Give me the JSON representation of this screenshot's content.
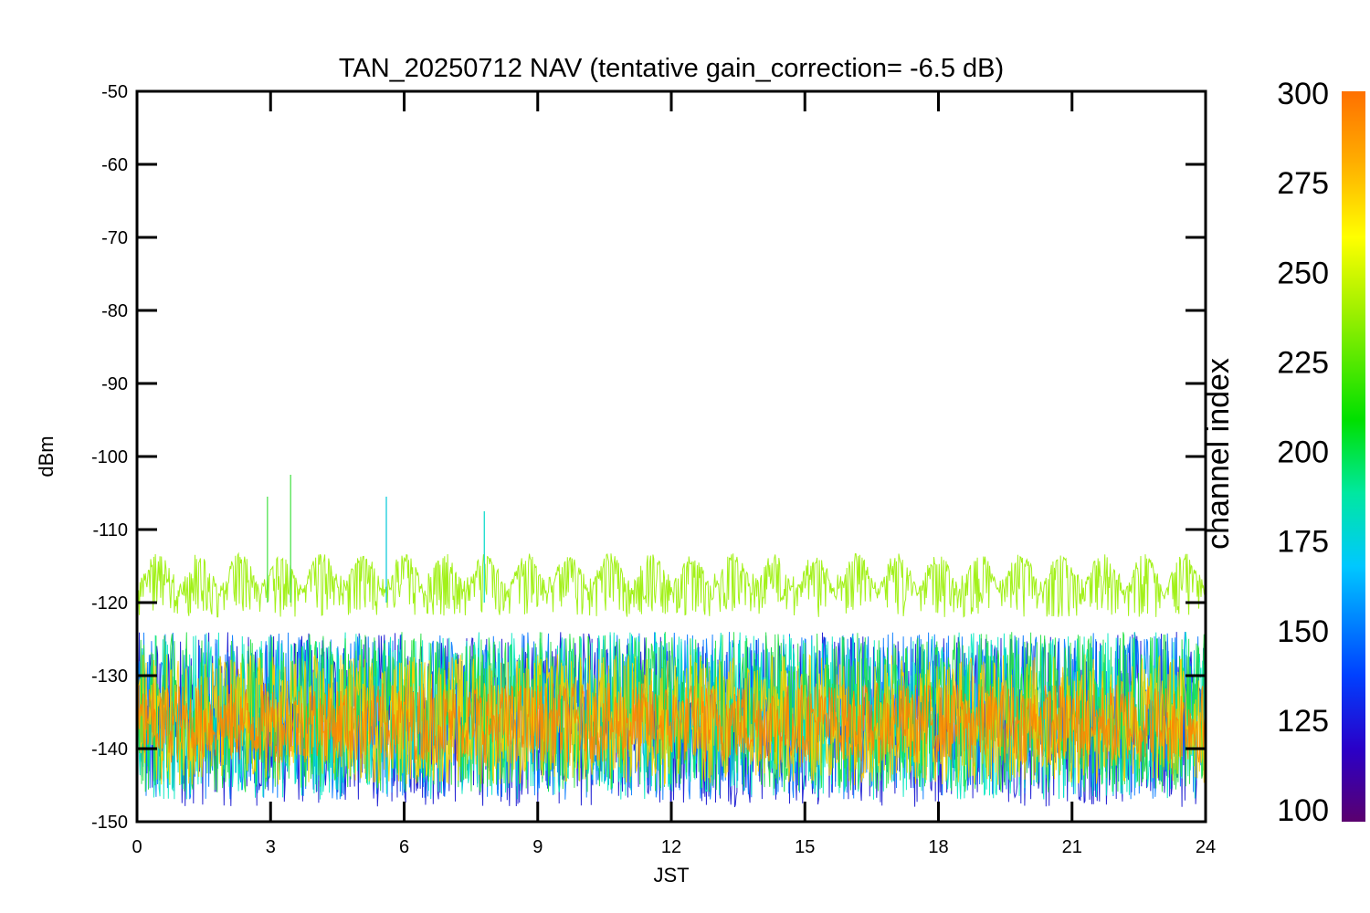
{
  "chart_data": {
    "type": "line",
    "title": "TAN_20250712 NAV (tentative gain_correction= -6.5 dB)",
    "xlabel": "JST",
    "ylabel": "dBm",
    "xlim": [
      0,
      24
    ],
    "ylim": [
      -150,
      -50
    ],
    "xticks": [
      0,
      3,
      6,
      9,
      12,
      15,
      18,
      21,
      24
    ],
    "yticks": [
      -50,
      -60,
      -70,
      -80,
      -90,
      -100,
      -110,
      -120,
      -130,
      -140,
      -150
    ],
    "grid": false,
    "colorbar": {
      "title": "channel index",
      "range": [
        100,
        300
      ],
      "ticks": [
        300,
        275,
        250,
        225,
        200,
        175,
        150,
        125,
        100
      ],
      "colormap": "rainbow",
      "colors": [
        "#5a006e",
        "#2a00c8",
        "#0040ff",
        "#00c8ff",
        "#00e8a0",
        "#00e000",
        "#a0f000",
        "#ffff00",
        "#ffb000",
        "#ff8000",
        "#ff7000"
      ]
    },
    "series": [
      {
        "channel_index": 280,
        "color": "#ff8400",
        "mean_dBm": -136.5,
        "spread_low": -142,
        "spread_high": -131
      },
      {
        "channel_index": 270,
        "color": "#ffd000",
        "mean_dBm": -134,
        "spread_low": -145,
        "spread_high": -127
      },
      {
        "channel_index": 250,
        "color": "#98f000",
        "mean_dBm": -119,
        "spread_low": -122,
        "spread_high": -116,
        "diurnal_peaks_dBm": -114
      },
      {
        "channel_index": 230,
        "color": "#20e040",
        "mean_dBm": -135,
        "spread_low": -146,
        "spread_high": -124
      },
      {
        "channel_index": 190,
        "color": "#00e8c0",
        "mean_dBm": -135,
        "spread_low": -147,
        "spread_high": -124
      },
      {
        "channel_index": 150,
        "color": "#0078ff",
        "mean_dBm": -135,
        "spread_low": -147,
        "spread_high": -124
      },
      {
        "channel_index": 125,
        "color": "#1010d0",
        "mean_dBm": -135,
        "spread_low": -148,
        "spread_high": -124
      }
    ],
    "spikes": [
      {
        "x": 2.93,
        "y": -105.5,
        "color": "#40e040"
      },
      {
        "x": 3.45,
        "y": -102.5,
        "color": "#40e040"
      },
      {
        "x": 5.6,
        "y": -105.5,
        "color": "#00c8d8"
      },
      {
        "x": 7.8,
        "y": -107.5,
        "color": "#00d8c8"
      }
    ]
  }
}
